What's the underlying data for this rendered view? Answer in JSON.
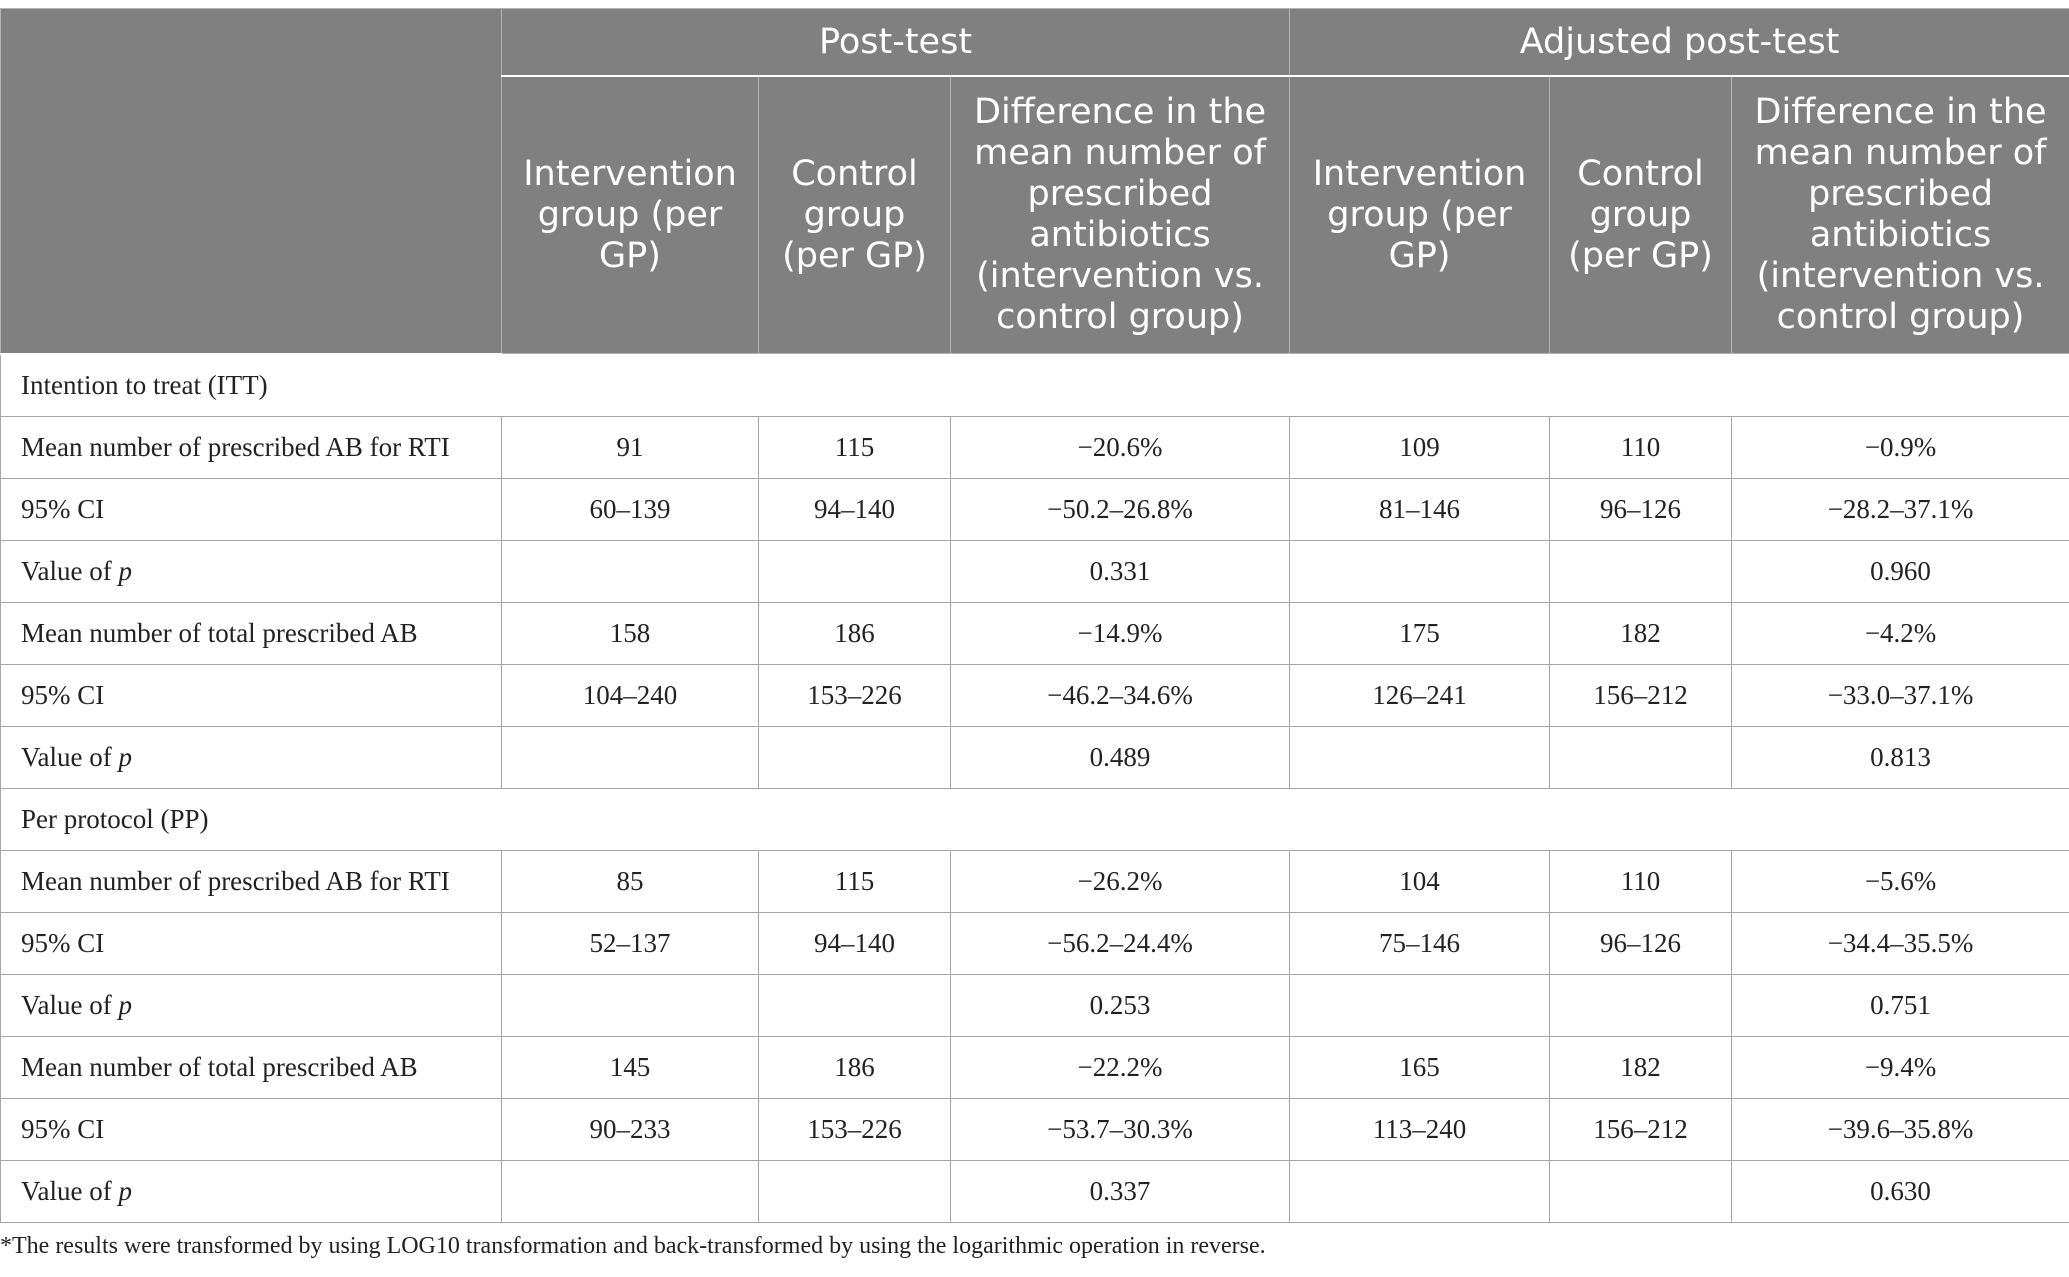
{
  "header": {
    "groups": [
      "Post-test",
      "Adjusted post-test"
    ],
    "subcolumns": [
      "Intervention group (per GP)",
      "Control group (per GP)",
      "Difference in the mean number of prescribed antibiotics (intervention vs. control group)",
      "Intervention group (per GP)",
      "Control group (per GP)",
      "Difference in the mean number of prescribed antibiotics (intervention vs. control group)"
    ]
  },
  "sections": [
    {
      "title": "Intention to treat (ITT)",
      "rows": [
        {
          "label": "Mean number of prescribed AB for RTI",
          "cells": [
            "91",
            "115",
            "−20.6%",
            "109",
            "110",
            "−0.9%"
          ]
        },
        {
          "label": "95% CI",
          "cells": [
            "60–139",
            "94–140",
            "−50.2–26.8%",
            "81–146",
            "96–126",
            "−28.2–37.1%"
          ]
        },
        {
          "label_prefix": "Value of ",
          "label_var": "p",
          "cells": [
            "",
            "",
            "0.331",
            "",
            "",
            "0.960"
          ]
        },
        {
          "label": "Mean number of total prescribed AB",
          "cells": [
            "158",
            "186",
            "−14.9%",
            "175",
            "182",
            "−4.2%"
          ]
        },
        {
          "label": "95% CI",
          "cells": [
            "104–240",
            "153–226",
            "−46.2–34.6%",
            "126–241",
            "156–212",
            "−33.0–37.1%"
          ]
        },
        {
          "label_prefix": "Value of ",
          "label_var": "p",
          "cells": [
            "",
            "",
            "0.489",
            "",
            "",
            "0.813"
          ]
        }
      ]
    },
    {
      "title": "Per protocol (PP)",
      "rows": [
        {
          "label": "Mean number of prescribed AB for RTI",
          "cells": [
            "85",
            "115",
            "−26.2%",
            "104",
            "110",
            "−5.6%"
          ]
        },
        {
          "label": "95% CI",
          "cells": [
            "52–137",
            "94–140",
            "−56.2–24.4%",
            "75–146",
            "96–126",
            "−34.4–35.5%"
          ]
        },
        {
          "label_prefix": "Value of ",
          "label_var": "p",
          "cells": [
            "",
            "",
            "0.253",
            "",
            "",
            "0.751"
          ]
        },
        {
          "label": "Mean number of total prescribed AB",
          "cells": [
            "145",
            "186",
            "−22.2%",
            "165",
            "182",
            "−9.4%"
          ]
        },
        {
          "label": "95% CI",
          "cells": [
            "90–233",
            "153–226",
            "−53.7–30.3%",
            "113–240",
            "156–212",
            "−39.6–35.8%"
          ]
        },
        {
          "label_prefix": "Value of ",
          "label_var": "p",
          "cells": [
            "",
            "",
            "0.337",
            "",
            "",
            "0.630"
          ]
        }
      ]
    }
  ],
  "footnote": "*The results were transformed by using LOG10 transformation and back-transformed by using the logarithmic operation in reverse."
}
